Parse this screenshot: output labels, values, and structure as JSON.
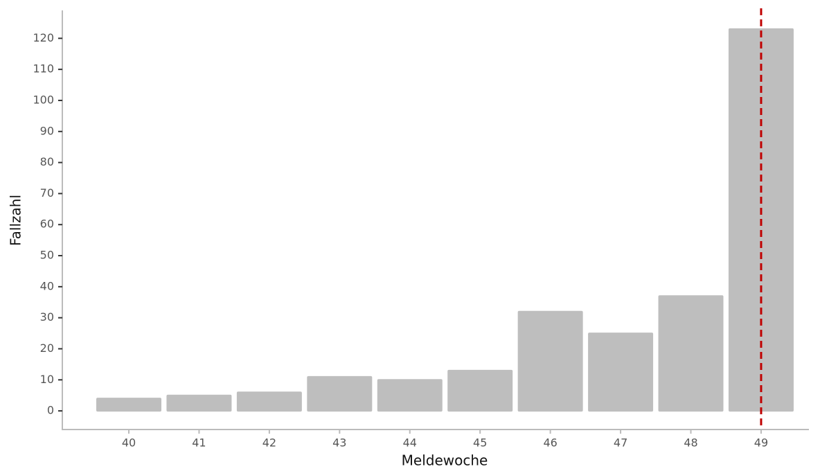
{
  "chart_data": {
    "type": "bar",
    "x_label": "Meldewoche",
    "y_label": "Fallzahl",
    "categories": [
      "40",
      "41",
      "42",
      "43",
      "44",
      "45",
      "46",
      "47",
      "48",
      "49"
    ],
    "values": [
      4,
      5,
      6,
      11,
      10,
      13,
      32,
      25,
      37,
      123
    ],
    "color": "#bebebe",
    "ylim": [
      -6,
      129
    ],
    "yticks": [
      0,
      10,
      20,
      30,
      40,
      50,
      60,
      70,
      80,
      90,
      100,
      110,
      120
    ],
    "grid": false,
    "reference_line": {
      "category": "49",
      "color": "#c00000",
      "style": "dashed"
    }
  }
}
